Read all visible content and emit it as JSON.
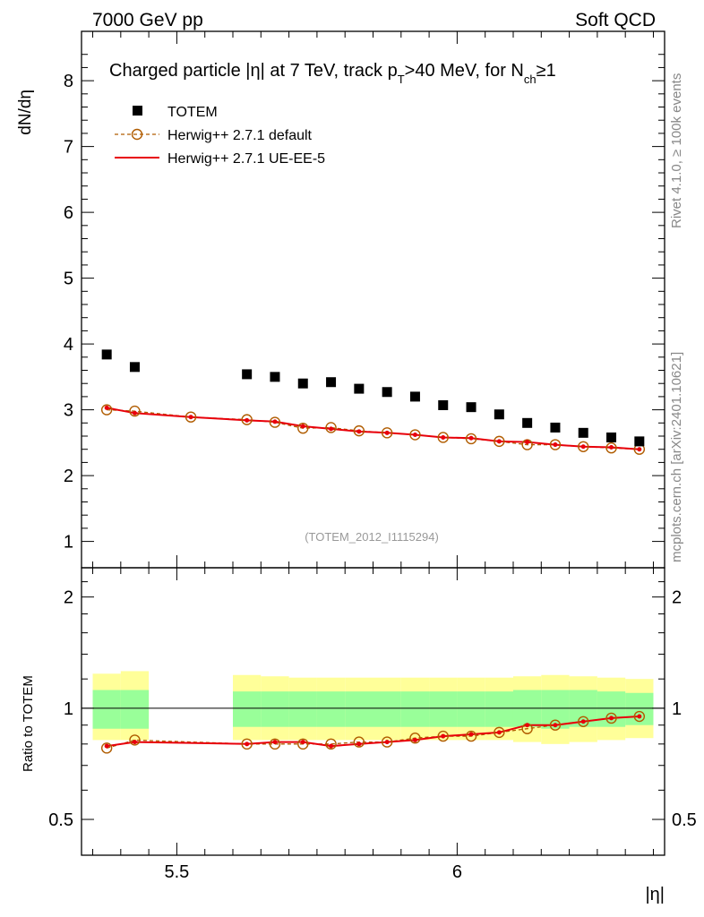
{
  "header": {
    "left": "7000 GeV pp",
    "right": "Soft QCD"
  },
  "side_labels": {
    "top": "Rivet 4.1.0, ≥ 100k events",
    "bottom": "mcplots.cern.ch [arXiv:2401.10621]"
  },
  "chart_data": {
    "type": "scatter",
    "title": "Charged particle |η| at 7 TeV, track p_T>40 MeV, for N_ch≥1",
    "title_parts": {
      "a": "Charged particle |η| at 7 TeV, track p",
      "sub1": "T",
      "b": ">40 MeV, for N",
      "sub2": "ch",
      "c": "≥1"
    },
    "xlabel": "|η|",
    "ylabel": "dN/dη",
    "ratio_ylabel": "Ratio to TOTEM",
    "watermark": "(TOTEM_2012_I1115294)",
    "xlim": [
      5.33,
      6.37
    ],
    "ylim": [
      0.6,
      8.75
    ],
    "ratio_ylim": [
      0.4,
      2.4
    ],
    "x_ticks": [
      {
        "v": 5.5,
        "label": "5.5"
      },
      {
        "v": 6,
        "label": "6"
      }
    ],
    "y_ticks": [
      {
        "v": 1,
        "label": "1"
      },
      {
        "v": 2,
        "label": "2"
      },
      {
        "v": 3,
        "label": "3"
      },
      {
        "v": 4,
        "label": "4"
      },
      {
        "v": 5,
        "label": "5"
      },
      {
        "v": 6,
        "label": "6"
      },
      {
        "v": 7,
        "label": "7"
      },
      {
        "v": 8,
        "label": "8"
      }
    ],
    "ratio_ticks": [
      {
        "v": 0.5,
        "label": "0.5"
      },
      {
        "v": 1,
        "label": "1"
      },
      {
        "v": 2,
        "label": "2"
      }
    ],
    "legend": [
      {
        "name": "TOTEM",
        "style": "square"
      },
      {
        "name": "Herwig++ 2.7.1 default",
        "style": "circle"
      },
      {
        "name": "Herwig++ 2.7.1 UE-EE-5",
        "style": "line"
      }
    ],
    "x": [
      5.375,
      5.425,
      5.525,
      5.625,
      5.675,
      5.725,
      5.775,
      5.825,
      5.875,
      5.925,
      5.975,
      6.025,
      6.075,
      6.125,
      6.175,
      6.225,
      6.275,
      6.325
    ],
    "series": [
      {
        "name": "TOTEM",
        "x": [
          5.375,
          5.425,
          5.625,
          5.675,
          5.725,
          5.775,
          5.825,
          5.875,
          5.925,
          5.975,
          6.025,
          6.075,
          6.125,
          6.175,
          6.225,
          6.275,
          6.325
        ],
        "values": [
          3.84,
          3.65,
          3.54,
          3.5,
          3.4,
          3.42,
          3.32,
          3.27,
          3.2,
          3.07,
          3.04,
          2.93,
          2.8,
          2.73,
          2.65,
          2.58,
          2.52
        ]
      },
      {
        "name": "Herwig++ 2.7.1 default",
        "x": [
          5.375,
          5.425,
          5.525,
          5.625,
          5.675,
          5.725,
          5.775,
          5.825,
          5.875,
          5.925,
          5.975,
          6.025,
          6.075,
          6.125,
          6.175,
          6.225,
          6.275,
          6.325
        ],
        "values": [
          3.0,
          2.98,
          2.89,
          2.85,
          2.81,
          2.72,
          2.73,
          2.68,
          2.65,
          2.62,
          2.58,
          2.56,
          2.52,
          2.47,
          2.47,
          2.44,
          2.42,
          2.4
        ]
      },
      {
        "name": "Herwig++ 2.7.1 UE-EE-5",
        "x": [
          5.375,
          5.425,
          5.525,
          5.625,
          5.675,
          5.725,
          5.775,
          5.825,
          5.875,
          5.925,
          5.975,
          6.025,
          6.075,
          6.125,
          6.175,
          6.225,
          6.275,
          6.325
        ],
        "values": [
          3.03,
          2.95,
          2.89,
          2.84,
          2.82,
          2.75,
          2.71,
          2.67,
          2.65,
          2.62,
          2.58,
          2.57,
          2.52,
          2.51,
          2.47,
          2.44,
          2.43,
          2.4
        ]
      }
    ],
    "ratio_series": [
      {
        "name": "Herwig++ 2.7.1 default",
        "x": [
          5.375,
          5.425,
          5.625,
          5.675,
          5.725,
          5.775,
          5.825,
          5.875,
          5.925,
          5.975,
          6.025,
          6.075,
          6.125,
          6.175,
          6.225,
          6.275,
          6.325
        ],
        "values": [
          0.78,
          0.82,
          0.8,
          0.8,
          0.8,
          0.8,
          0.81,
          0.81,
          0.83,
          0.84,
          0.84,
          0.86,
          0.88,
          0.9,
          0.92,
          0.94,
          0.95
        ]
      },
      {
        "name": "Herwig++ 2.7.1 UE-EE-5",
        "x": [
          5.375,
          5.425,
          5.625,
          5.675,
          5.725,
          5.775,
          5.825,
          5.875,
          5.925,
          5.975,
          6.025,
          6.075,
          6.125,
          6.175,
          6.225,
          6.275,
          6.325
        ],
        "values": [
          0.79,
          0.81,
          0.8,
          0.81,
          0.81,
          0.79,
          0.8,
          0.81,
          0.82,
          0.84,
          0.85,
          0.86,
          0.9,
          0.9,
          0.92,
          0.94,
          0.95
        ]
      }
    ],
    "bands": [
      {
        "x0": 5.35,
        "x1": 5.4,
        "yellow": [
          0.82,
          1.24
        ],
        "green": [
          0.88,
          1.12
        ]
      },
      {
        "x0": 5.4,
        "x1": 5.45,
        "yellow": [
          0.82,
          1.26
        ],
        "green": [
          0.88,
          1.12
        ]
      },
      {
        "x0": 5.6,
        "x1": 5.65,
        "yellow": [
          0.82,
          1.23
        ],
        "green": [
          0.89,
          1.11
        ]
      },
      {
        "x0": 5.65,
        "x1": 5.7,
        "yellow": [
          0.82,
          1.22
        ],
        "green": [
          0.89,
          1.11
        ]
      },
      {
        "x0": 5.7,
        "x1": 5.75,
        "yellow": [
          0.82,
          1.21
        ],
        "green": [
          0.89,
          1.11
        ]
      },
      {
        "x0": 5.75,
        "x1": 5.8,
        "yellow": [
          0.82,
          1.21
        ],
        "green": [
          0.89,
          1.11
        ]
      },
      {
        "x0": 5.8,
        "x1": 5.85,
        "yellow": [
          0.82,
          1.21
        ],
        "green": [
          0.89,
          1.11
        ]
      },
      {
        "x0": 5.85,
        "x1": 5.9,
        "yellow": [
          0.82,
          1.21
        ],
        "green": [
          0.89,
          1.11
        ]
      },
      {
        "x0": 5.9,
        "x1": 5.95,
        "yellow": [
          0.82,
          1.21
        ],
        "green": [
          0.89,
          1.11
        ]
      },
      {
        "x0": 5.95,
        "x1": 6.0,
        "yellow": [
          0.82,
          1.21
        ],
        "green": [
          0.89,
          1.11
        ]
      },
      {
        "x0": 6.0,
        "x1": 6.05,
        "yellow": [
          0.82,
          1.21
        ],
        "green": [
          0.89,
          1.11
        ]
      },
      {
        "x0": 6.05,
        "x1": 6.1,
        "yellow": [
          0.82,
          1.21
        ],
        "green": [
          0.89,
          1.11
        ]
      },
      {
        "x0": 6.1,
        "x1": 6.15,
        "yellow": [
          0.81,
          1.22
        ],
        "green": [
          0.89,
          1.12
        ]
      },
      {
        "x0": 6.15,
        "x1": 6.2,
        "yellow": [
          0.8,
          1.23
        ],
        "green": [
          0.88,
          1.12
        ]
      },
      {
        "x0": 6.2,
        "x1": 6.25,
        "yellow": [
          0.81,
          1.22
        ],
        "green": [
          0.89,
          1.12
        ]
      },
      {
        "x0": 6.25,
        "x1": 6.3,
        "yellow": [
          0.82,
          1.21
        ],
        "green": [
          0.89,
          1.11
        ]
      },
      {
        "x0": 6.3,
        "x1": 6.35,
        "yellow": [
          0.83,
          1.2
        ],
        "green": [
          0.9,
          1.1
        ]
      }
    ]
  },
  "colors": {
    "data": "#000000",
    "default": "#b05c00",
    "ue": "#e8000a",
    "band_yellow": "#ffff99",
    "band_green": "#99ff99",
    "watermark": "#999999"
  }
}
